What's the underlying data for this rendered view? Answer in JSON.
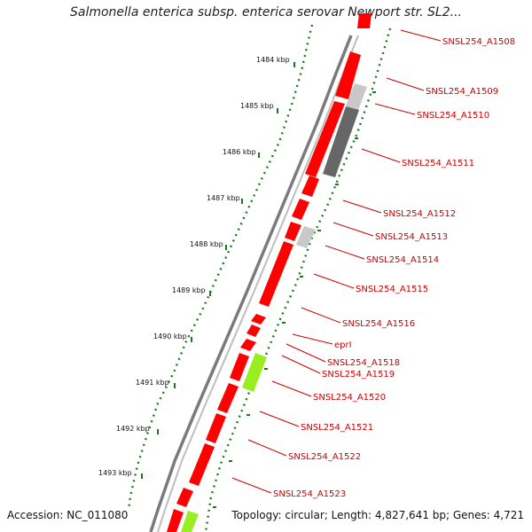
{
  "title": "Salmonella enterica subsp. enterica serovar Newport str. SL2...",
  "accession": "Accession: NC_011080",
  "topology": "Topology: circular; Length: 4,827,641 bp; Genes: 4,721",
  "colors": {
    "cds": "#ff0000",
    "rna_light": "#c8c8c8",
    "rna_dark": "#666666",
    "green": "#99ee22",
    "backbone": "#8c8c8c",
    "label": "#cc0000",
    "ticks": "#1a7a1a"
  },
  "kbp_labels": [
    "1484 kbp",
    "1485 kbp",
    "1486 kbp",
    "1487 kbp",
    "1488 kbp",
    "1489 kbp",
    "1490 kbp",
    "1491 kbp",
    "1492 kbp",
    "1493 kbp"
  ],
  "gene_labels": [
    "SNSL254_A1508",
    "SNSL254_A1509",
    "SNSL254_A1510",
    "SNSL254_A1511",
    "SNSL254_A1512",
    "SNSL254_A1513",
    "SNSL254_A1514",
    "SNSL254_A1515",
    "SNSL254_A1516",
    "eprI",
    "SNSL254_A1518",
    "SNSL254_A1519",
    "SNSL254_A1520",
    "SNSL254_A1521",
    "SNSL254_A1522",
    "SNSL254_A1523"
  ]
}
